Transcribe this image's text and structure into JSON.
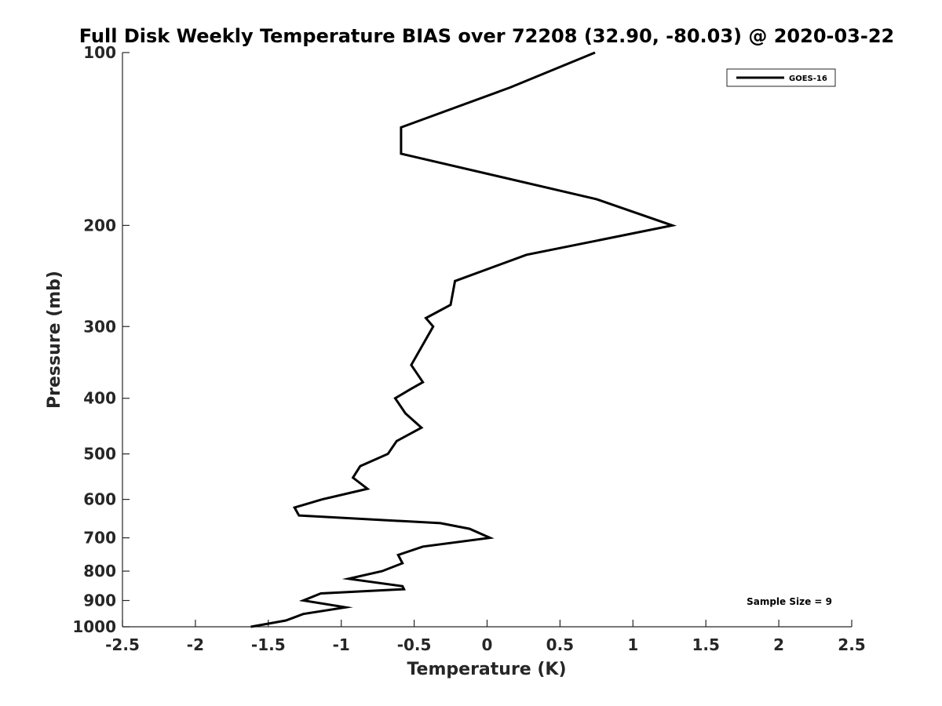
{
  "chart_data": {
    "type": "line",
    "title": "Full Disk Weekly Temperature BIAS over 72208 (32.90, -80.03) @ 2020-03-22",
    "xlabel": "Temperature (K)",
    "ylabel": "Pressure (mb)",
    "xlim": [
      -2.5,
      2.5
    ],
    "ylim": [
      1000,
      100
    ],
    "y_scale": "log",
    "y_reversed": true,
    "x_ticks": [
      "-2.5",
      "-2",
      "-1.5",
      "-1",
      "-0.5",
      "0",
      "0.5",
      "1",
      "1.5",
      "2",
      "2.5"
    ],
    "y_ticks": [
      "100",
      "200",
      "300",
      "400",
      "500",
      "600",
      "700",
      "800",
      "900",
      "1000"
    ],
    "grid": false,
    "legend": {
      "position": "top-right",
      "entries": [
        "GOES-16"
      ]
    },
    "annotation": "Sample Size = 9",
    "series": [
      {
        "name": "GOES-16",
        "color": "#000000",
        "points": [
          [
            0.74,
            100
          ],
          [
            0.16,
            115
          ],
          [
            -0.59,
            135
          ],
          [
            -0.59,
            150
          ],
          [
            0.75,
            180
          ],
          [
            1.27,
            200
          ],
          [
            0.27,
            225
          ],
          [
            -0.22,
            250
          ],
          [
            -0.25,
            275
          ],
          [
            -0.42,
            290
          ],
          [
            -0.37,
            300
          ],
          [
            -0.52,
            350
          ],
          [
            -0.44,
            375
          ],
          [
            -0.52,
            385
          ],
          [
            -0.63,
            400
          ],
          [
            -0.56,
            425
          ],
          [
            -0.45,
            450
          ],
          [
            -0.62,
            475
          ],
          [
            -0.68,
            500
          ],
          [
            -0.87,
            525
          ],
          [
            -0.92,
            550
          ],
          [
            -0.82,
            575
          ],
          [
            -1.13,
            600
          ],
          [
            -1.32,
            620
          ],
          [
            -1.29,
            640
          ],
          [
            -0.32,
            660
          ],
          [
            -0.12,
            675
          ],
          [
            0.02,
            700
          ],
          [
            -0.44,
            725
          ],
          [
            -0.61,
            750
          ],
          [
            -0.58,
            775
          ],
          [
            -0.72,
            800
          ],
          [
            -0.95,
            825
          ],
          [
            -0.58,
            850
          ],
          [
            -0.57,
            860
          ],
          [
            -1.14,
            875
          ],
          [
            -1.26,
            900
          ],
          [
            -0.97,
            925
          ],
          [
            -1.26,
            950
          ],
          [
            -1.38,
            975
          ],
          [
            -1.62,
            1000
          ]
        ]
      }
    ]
  }
}
